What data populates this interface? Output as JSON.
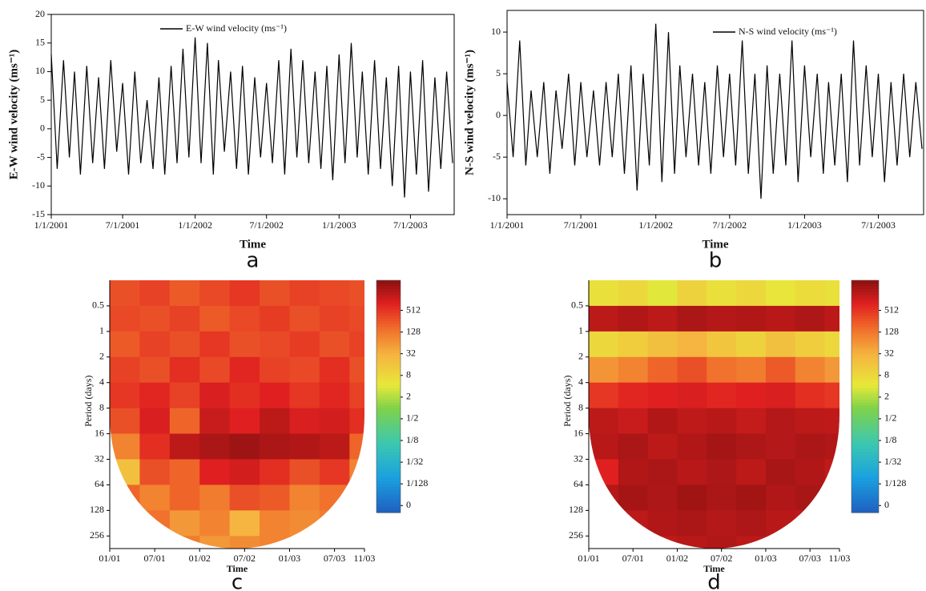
{
  "chart_data": [
    {
      "type": "line",
      "panel_label": "a",
      "xlabel": "Time",
      "ylabel": "E-W wind velocity (ms⁻¹)",
      "xlim": [
        "2001-01-01",
        "2003-10-20"
      ],
      "ylim": [
        -15,
        20
      ],
      "yticks": [
        -15,
        -10,
        -5,
        0,
        5,
        10,
        15,
        20
      ],
      "xticks": [
        {
          "value": "2001-01-01",
          "label": "1/1/2001"
        },
        {
          "value": "2001-07-01",
          "label": "7/1/2001"
        },
        {
          "value": "2002-01-01",
          "label": "1/1/2002"
        },
        {
          "value": "2002-07-01",
          "label": "7/1/2002"
        },
        {
          "value": "2003-01-01",
          "label": "1/1/2003"
        },
        {
          "value": "2003-07-01",
          "label": "7/1/2003"
        }
      ],
      "x": [
        "2001-01-01",
        "2001-01-16",
        "2001-02-01",
        "2001-02-16",
        "2001-03-01",
        "2001-03-16",
        "2001-04-01",
        "2001-04-16",
        "2001-05-01",
        "2001-05-16",
        "2001-06-01",
        "2001-06-16",
        "2001-07-01",
        "2001-07-16",
        "2001-08-01",
        "2001-08-16",
        "2001-09-01",
        "2001-09-16",
        "2001-10-01",
        "2001-10-16",
        "2001-11-01",
        "2001-11-16",
        "2001-12-01",
        "2001-12-16",
        "2002-01-01",
        "2002-01-16",
        "2002-02-01",
        "2002-02-16",
        "2002-03-01",
        "2002-03-16",
        "2002-04-01",
        "2002-04-16",
        "2002-05-01",
        "2002-05-16",
        "2002-06-01",
        "2002-06-16",
        "2002-07-01",
        "2002-07-16",
        "2002-08-01",
        "2002-08-16",
        "2002-09-01",
        "2002-09-16",
        "2002-10-01",
        "2002-10-16",
        "2002-11-01",
        "2002-11-16",
        "2002-12-01",
        "2002-12-16",
        "2003-01-01",
        "2003-01-16",
        "2003-02-01",
        "2003-02-16",
        "2003-03-01",
        "2003-03-16",
        "2003-04-01",
        "2003-04-16",
        "2003-05-01",
        "2003-05-16",
        "2003-06-01",
        "2003-06-16",
        "2003-07-01",
        "2003-07-16",
        "2003-08-01",
        "2003-08-16",
        "2003-09-01",
        "2003-09-16",
        "2003-10-01",
        "2003-10-16"
      ],
      "series": [
        {
          "name": "E-W wind velocity (ms⁻¹)",
          "color": "#000000",
          "values": [
            13,
            -7,
            12,
            -5,
            10,
            -8,
            11,
            -6,
            9,
            -7,
            12,
            -4,
            8,
            -8,
            10,
            -6,
            5,
            -7,
            9,
            -8,
            11,
            -6,
            14,
            -5,
            16,
            -6,
            15,
            -8,
            12,
            -4,
            10,
            -7,
            11,
            -8,
            9,
            -5,
            8,
            -6,
            12,
            -8,
            14,
            -5,
            12,
            -6,
            10,
            -7,
            11,
            -9,
            13,
            -6,
            15,
            -5,
            10,
            -8,
            12,
            -7,
            9,
            -10,
            11,
            -12,
            10,
            -8,
            12,
            -11,
            9,
            -7,
            10,
            -6
          ]
        }
      ]
    },
    {
      "type": "line",
      "panel_label": "b",
      "xlabel": "Time",
      "ylabel": "N-S wind velocity (ms⁻¹)",
      "xlim": [
        "2001-01-01",
        "2003-10-20"
      ],
      "ylim": [
        -11.9,
        12.6
      ],
      "yticks": [
        -10,
        -5,
        0,
        5,
        10
      ],
      "xticks": [
        {
          "value": "2001-01-01",
          "label": "1/1/2001"
        },
        {
          "value": "2001-07-01",
          "label": "7/1/2001"
        },
        {
          "value": "2002-01-01",
          "label": "1/1/2002"
        },
        {
          "value": "2002-07-01",
          "label": "7/1/2002"
        },
        {
          "value": "2003-01-01",
          "label": "1/1/2003"
        },
        {
          "value": "2003-07-01",
          "label": "7/1/2003"
        }
      ],
      "x": [
        "2001-01-01",
        "2001-01-16",
        "2001-02-01",
        "2001-02-16",
        "2001-03-01",
        "2001-03-16",
        "2001-04-01",
        "2001-04-16",
        "2001-05-01",
        "2001-05-16",
        "2001-06-01",
        "2001-06-16",
        "2001-07-01",
        "2001-07-16",
        "2001-08-01",
        "2001-08-16",
        "2001-09-01",
        "2001-09-16",
        "2001-10-01",
        "2001-10-16",
        "2001-11-01",
        "2001-11-16",
        "2001-12-01",
        "2001-12-16",
        "2002-01-01",
        "2002-01-16",
        "2002-02-01",
        "2002-02-16",
        "2002-03-01",
        "2002-03-16",
        "2002-04-01",
        "2002-04-16",
        "2002-05-01",
        "2002-05-16",
        "2002-06-01",
        "2002-06-16",
        "2002-07-01",
        "2002-07-16",
        "2002-08-01",
        "2002-08-16",
        "2002-09-01",
        "2002-09-16",
        "2002-10-01",
        "2002-10-16",
        "2002-11-01",
        "2002-11-16",
        "2002-12-01",
        "2002-12-16",
        "2003-01-01",
        "2003-01-16",
        "2003-02-01",
        "2003-02-16",
        "2003-03-01",
        "2003-03-16",
        "2003-04-01",
        "2003-04-16",
        "2003-05-01",
        "2003-05-16",
        "2003-06-01",
        "2003-06-16",
        "2003-07-01",
        "2003-07-16",
        "2003-08-01",
        "2003-08-16",
        "2003-09-01",
        "2003-09-16",
        "2003-10-01",
        "2003-10-16"
      ],
      "series": [
        {
          "name": "N-S wind velocity (ms⁻¹)",
          "color": "#000000",
          "values": [
            4,
            -5,
            9,
            -6,
            3,
            -5,
            4,
            -7,
            3,
            -4,
            5,
            -6,
            4,
            -5,
            3,
            -6,
            4,
            -5,
            5,
            -7,
            6,
            -9,
            5,
            -6,
            11,
            -8,
            10,
            -7,
            6,
            -5,
            5,
            -6,
            4,
            -7,
            6,
            -5,
            5,
            -6,
            9,
            -7,
            5,
            -10,
            6,
            -7,
            5,
            -6,
            9,
            -8,
            6,
            -5,
            5,
            -7,
            4,
            -6,
            5,
            -8,
            9,
            -6,
            6,
            -5,
            5,
            -8,
            4,
            -6,
            5,
            -5,
            4,
            -4
          ]
        }
      ]
    },
    {
      "type": "heatmap",
      "panel_label": "c",
      "xlabel": "Time",
      "ylabel": "Period (days)",
      "log_y": true,
      "xlim": [
        0,
        34
      ],
      "ylim": [
        0.25,
        360
      ],
      "yticks": [
        0.5,
        1,
        2,
        4,
        8,
        16,
        32,
        64,
        128,
        256
      ],
      "xticks": [
        {
          "value": 0,
          "label": "01/01"
        },
        {
          "value": 6,
          "label": "07/01"
        },
        {
          "value": 12,
          "label": "01/02"
        },
        {
          "value": 18,
          "label": "07/02"
        },
        {
          "value": 24,
          "label": "01/03"
        },
        {
          "value": 30,
          "label": "07/03"
        },
        {
          "value": 34,
          "label": "11/03"
        }
      ],
      "x_edges": [
        0,
        4,
        8,
        12,
        16,
        20,
        24,
        28,
        32,
        34
      ],
      "y_edges": [
        0.25,
        0.5,
        1,
        2,
        4,
        8,
        16,
        32,
        64,
        128,
        256,
        512
      ],
      "clim": [
        0.00125,
        3500
      ],
      "colorbar_ticks": [
        {
          "value": 0.001953125,
          "label": "0"
        },
        {
          "value": 0.0078125,
          "label": "1/128"
        },
        {
          "value": 0.03125,
          "label": "1/32"
        },
        {
          "value": 0.125,
          "label": "1/8"
        },
        {
          "value": 0.5,
          "label": "1/2"
        },
        2,
        8,
        32,
        128,
        512
      ],
      "z": [
        [
          300,
          400,
          250,
          350,
          500,
          300,
          400,
          350,
          300
        ],
        [
          350,
          300,
          400,
          250,
          350,
          450,
          300,
          400,
          350
        ],
        [
          250,
          400,
          300,
          500,
          300,
          350,
          450,
          300,
          400
        ],
        [
          400,
          300,
          600,
          350,
          700,
          400,
          350,
          600,
          300
        ],
        [
          500,
          700,
          400,
          900,
          600,
          800,
          500,
          700,
          400
        ],
        [
          300,
          900,
          200,
          1200,
          800,
          1500,
          900,
          1000,
          600
        ],
        [
          100,
          600,
          1500,
          2000,
          2500,
          2000,
          1800,
          1500,
          200
        ],
        [
          20,
          300,
          200,
          800,
          1000,
          600,
          300,
          500,
          100
        ],
        [
          200,
          100,
          200,
          120,
          300,
          250,
          100,
          150,
          200
        ],
        [
          100,
          150,
          60,
          100,
          30,
          100,
          80,
          120,
          100
        ],
        [
          80,
          100,
          120,
          60,
          80,
          100,
          120,
          100,
          80
        ]
      ]
    },
    {
      "type": "heatmap",
      "panel_label": "d",
      "xlabel": "Time",
      "ylabel": "Period (days)",
      "log_y": true,
      "xlim": [
        0,
        34
      ],
      "ylim": [
        0.25,
        360
      ],
      "yticks": [
        0.5,
        1,
        2,
        4,
        8,
        16,
        32,
        64,
        128,
        256
      ],
      "xticks": [
        {
          "value": 0,
          "label": "01/01"
        },
        {
          "value": 6,
          "label": "07/01"
        },
        {
          "value": 12,
          "label": "01/02"
        },
        {
          "value": 18,
          "label": "07/02"
        },
        {
          "value": 24,
          "label": "01/03"
        },
        {
          "value": 30,
          "label": "07/03"
        },
        {
          "value": 34,
          "label": "11/03"
        }
      ],
      "x_edges": [
        0,
        4,
        8,
        12,
        16,
        20,
        24,
        28,
        32,
        34
      ],
      "y_edges": [
        0.25,
        0.5,
        1,
        2,
        4,
        8,
        16,
        32,
        64,
        128,
        256,
        512
      ],
      "clim": [
        0.00125,
        3500
      ],
      "colorbar_ticks": [
        {
          "value": 0.001953125,
          "label": "0"
        },
        {
          "value": 0.0078125,
          "label": "1/128"
        },
        {
          "value": 0.03125,
          "label": "1/32"
        },
        {
          "value": 0.125,
          "label": "1/8"
        },
        {
          "value": 0.5,
          "label": "1/2"
        },
        2,
        8,
        32,
        128,
        512
      ],
      "z": [
        [
          6,
          8,
          4,
          10,
          6,
          8,
          5,
          7,
          6
        ],
        [
          1500,
          1800,
          1500,
          2000,
          1700,
          1800,
          1600,
          1900,
          1500
        ],
        [
          8,
          12,
          20,
          30,
          16,
          10,
          20,
          12,
          8
        ],
        [
          64,
          100,
          200,
          300,
          150,
          120,
          250,
          100,
          60
        ],
        [
          500,
          700,
          800,
          900,
          700,
          800,
          900,
          600,
          500
        ],
        [
          1500,
          1200,
          1800,
          1400,
          1600,
          1300,
          1700,
          1500,
          1400
        ],
        [
          1600,
          2000,
          1500,
          1800,
          2200,
          1900,
          1700,
          2000,
          1800
        ],
        [
          800,
          1800,
          2000,
          1600,
          1900,
          1500,
          2100,
          1800,
          1400
        ],
        [
          1700,
          2200,
          1900,
          2400,
          2000,
          2300,
          1800,
          2100,
          1900
        ],
        [
          1200,
          1500,
          1800,
          2000,
          1700,
          1900,
          1600,
          1400,
          1300
        ],
        [
          1000,
          1200,
          1400,
          1600,
          1800,
          1500,
          1300,
          1100,
          1000
        ]
      ]
    }
  ]
}
